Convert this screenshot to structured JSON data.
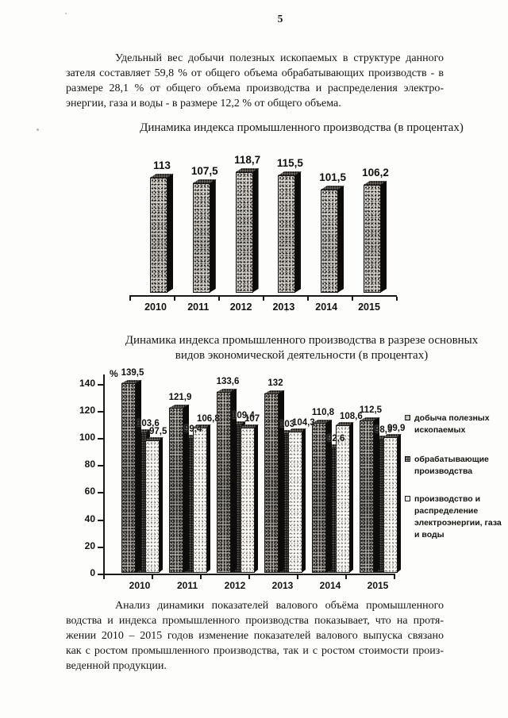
{
  "page": {
    "number": "5",
    "paragraph1": {
      "lines": [
        "Удельный вес добычи полезных ископаемых в структуре данного пока-",
        "зателя составляет 59,8 % от общего объема  обрабатывающих производств - в",
        "размере 28,1 % от общего объема  производства и распределения электро-",
        "энергии, газа и воды - в размере 12,2 % от общего объема."
      ]
    },
    "paragraph2": {
      "lines": [
        "Анализ динамики показателей валового объёма промышленного произ-",
        "водства и индекса промышленного производства показывает, что на протя-",
        "жении 2010 – 2015 годов изменение показателей валового выпуска связано",
        "как с ростом промышленного производства, так и с ростом стоимости произ-",
        "веденной продукции."
      ]
    }
  },
  "chart_data": [
    {
      "type": "bar",
      "style": "3d-column-textured",
      "title": "Динамика индекса промышленного производства (в процентах)",
      "categories": [
        "2010",
        "2011",
        "2012",
        "2013",
        "2014",
        "2015"
      ],
      "values": [
        113,
        107.5,
        118.7,
        115.5,
        101.5,
        106.2
      ],
      "value_labels": [
        "113",
        "107,5",
        "118,7",
        "115,5",
        "101,5",
        "106,2"
      ],
      "ylim": [
        0,
        125
      ],
      "grid": false,
      "value_axis_visible": false
    },
    {
      "type": "bar",
      "style": "3d-column-textured",
      "title": "Динамика индекса промышленного производства в разрезе основных видов экономической деятельности (в процентах)",
      "title_lines": [
        "Динамика индекса промышленного производства в разрезе основных",
        "видов экономической деятельности (в процентах)"
      ],
      "categories": [
        "2010",
        "2011",
        "2012",
        "2013",
        "2014",
        "2015"
      ],
      "ylabel": "%",
      "yticks": [
        0,
        20,
        40,
        60,
        80,
        100,
        120,
        140
      ],
      "ylim": [
        0,
        145
      ],
      "grid": false,
      "legend_position": "right",
      "series": [
        {
          "name": "добыча полезных ископаемых",
          "values": [
            139.5,
            121.9,
            133.6,
            132,
            110.8,
            112.5
          ],
          "value_labels": [
            "139,5",
            "121,9",
            "133,6",
            "132",
            "110,8",
            "112,5"
          ]
        },
        {
          "name": "обрабатывающие производства",
          "values": [
            103.6,
            99.4,
            109.4,
            103,
            92.6,
            98.9
          ],
          "value_labels": [
            "103,6",
            "99,4",
            "109,4",
            "103",
            "92,6",
            "98,9"
          ]
        },
        {
          "name": "производство и распределение электроэнергии, газа и воды",
          "values": [
            97.5,
            106.8,
            107,
            104.3,
            108.6,
            99.9
          ],
          "value_labels": [
            "97,5",
            "106,8",
            "107",
            "104,3",
            "108,6",
            "99,9"
          ]
        }
      ]
    }
  ]
}
